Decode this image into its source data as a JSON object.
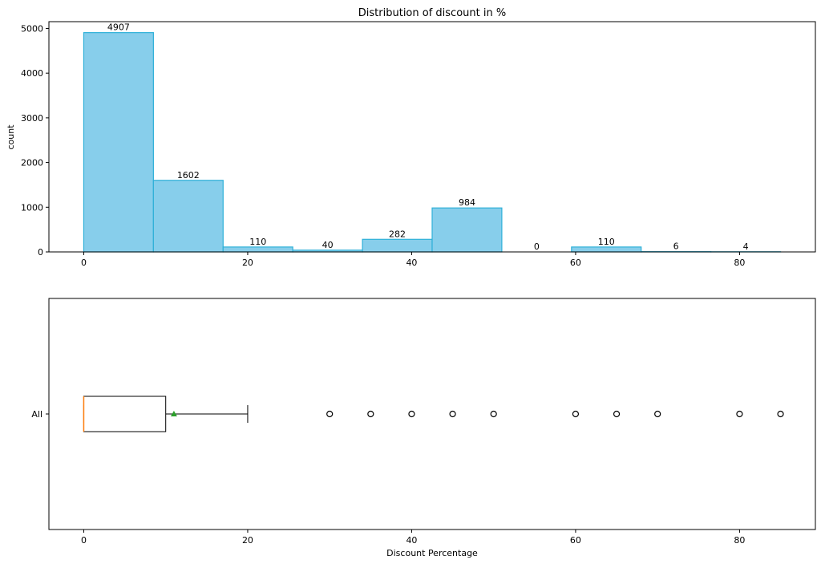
{
  "chart_data": [
    {
      "type": "histogram",
      "title": "Distribution of discount in %",
      "xlabel": "",
      "ylabel": "count",
      "xlim": [
        -4.25,
        89.25
      ],
      "ylim": [
        0,
        5152
      ],
      "xticks": [
        0,
        20,
        40,
        60,
        80
      ],
      "yticks": [
        0,
        1000,
        2000,
        3000,
        4000,
        5000
      ],
      "bin_edges": [
        0,
        8.5,
        17,
        25.5,
        34,
        42.5,
        51,
        59.5,
        68,
        76.5,
        85
      ],
      "values": [
        4907,
        1602,
        110,
        40,
        282,
        984,
        0,
        110,
        6,
        4
      ],
      "bar_labels": [
        "4907",
        "1602",
        "110",
        "40",
        "282",
        "984",
        "0",
        "110",
        "6",
        "4"
      ],
      "colors": {
        "fill": "#87ceeb",
        "edge": "#2eb0d8"
      }
    },
    {
      "type": "boxplot",
      "xlabel": "Discount Percentage",
      "ylabel": "",
      "category": "All",
      "xlim": [
        -4.25,
        89.25
      ],
      "xticks": [
        0,
        20,
        40,
        60,
        80
      ],
      "box": {
        "q1": 0,
        "median": 0,
        "q3": 10,
        "whisker_low": 0,
        "whisker_high": 20,
        "mean": 11
      },
      "outliers": [
        30,
        35,
        40,
        45,
        50,
        60,
        65,
        70,
        80,
        85
      ],
      "colors": {
        "median": "#ff7f0e",
        "mean": "#2ca02c",
        "box": "#000000"
      }
    }
  ]
}
